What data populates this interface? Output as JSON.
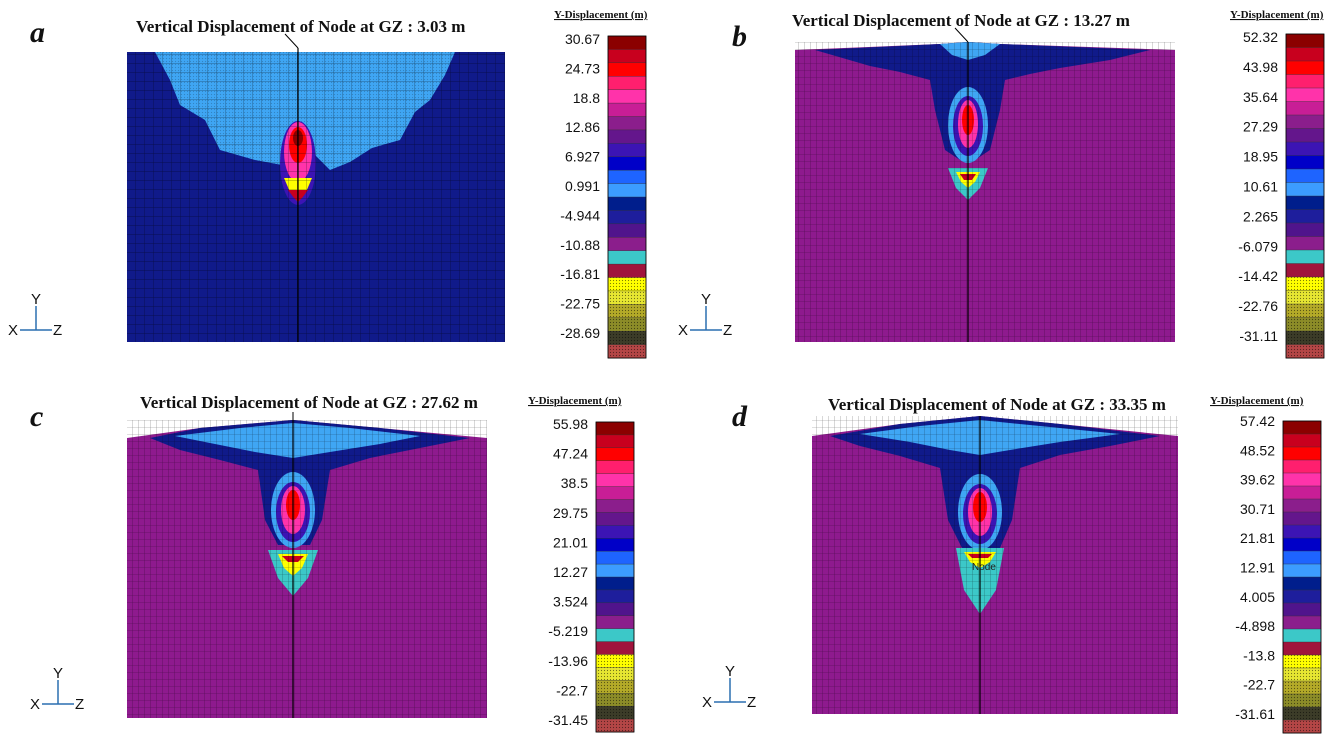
{
  "panels": [
    {
      "letter": "a",
      "title": "Vertical Displacement of Node at GZ : 3.03 m",
      "legend_title": "Y-Displacement (m)",
      "ticks": [
        "30.67",
        "24.73",
        "18.8",
        "12.86",
        "6.927",
        "0.991",
        "-4.944",
        "-10.88",
        "-16.81",
        "-22.75",
        "-28.69"
      ],
      "axes": {
        "y": "Y",
        "x": "X",
        "z": "Z"
      },
      "node_label": ""
    },
    {
      "letter": "b",
      "title": "Vertical Displacement of Node at GZ : 13.27 m",
      "legend_title": "Y-Displacement (m)",
      "ticks": [
        "52.32",
        "43.98",
        "35.64",
        "27.29",
        "18.95",
        "10.61",
        "2.265",
        "-6.079",
        "-14.42",
        "-22.76",
        "-31.11"
      ],
      "axes": {
        "y": "Y",
        "x": "X",
        "z": "Z"
      },
      "node_label": ""
    },
    {
      "letter": "c",
      "title": "Vertical Displacement of Node at GZ : 27.62 m",
      "legend_title": "Y-Displacement (m)",
      "ticks": [
        "55.98",
        "47.24",
        "38.5",
        "29.75",
        "21.01",
        "12.27",
        "3.524",
        "-5.219",
        "-13.96",
        "-22.7",
        "-31.45"
      ],
      "axes": {
        "y": "Y",
        "x": "X",
        "z": "Z"
      },
      "node_label": ""
    },
    {
      "letter": "d",
      "title": "Vertical Displacement of Node at GZ : 33.35 m",
      "legend_title": "Y-Displacement (m)",
      "ticks": [
        "57.42",
        "48.52",
        "39.62",
        "30.71",
        "21.81",
        "12.91",
        "4.005",
        "-4.898",
        "-13.8",
        "-22.7",
        "-31.61"
      ],
      "axes": {
        "y": "Y",
        "x": "X",
        "z": "Z"
      },
      "node_label": "Node"
    }
  ],
  "colors": {
    "scale": [
      "#8b0000",
      "#c8001e",
      "#ff0000",
      "#ff1f6e",
      "#ff33aa",
      "#c81e96",
      "#8b1e8c",
      "#64168c",
      "#3c14b4",
      "#0000c8",
      "#1e64ff",
      "#3c9cff",
      "#001e8c",
      "#1e1e9c",
      "#50148c",
      "#8b1e8c",
      "#3cc8c8",
      "#a0143c",
      "#ffff00",
      "#e6e632",
      "#b4aa28",
      "#8c8c28",
      "#3c3c28",
      "#b44646"
    ],
    "mesh_dark_blue": "#101a8a",
    "mesh_light_blue": "#3fa6f4",
    "mesh_purple": "#8e1a8e",
    "grid_line": "#000000"
  }
}
